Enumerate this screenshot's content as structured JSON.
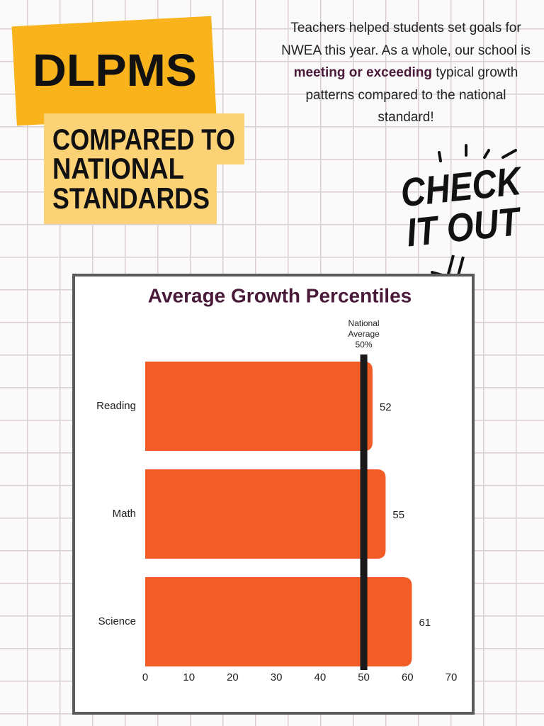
{
  "header": {
    "title": "DLPMS",
    "subtitle_lines": [
      "COMPARED TO",
      "NATIONAL",
      "STANDARDS"
    ]
  },
  "intro": {
    "parts": [
      "Teachers helped students set goals for NWEA this year. As a whole, our school is ",
      "meeting or exceeding",
      " typical growth patterns compared to the national standard!"
    ]
  },
  "callout": {
    "lines": [
      "CHECK",
      "IT OUT"
    ]
  },
  "chart_data": {
    "type": "barh",
    "title": "Average Growth Percentiles",
    "categories": [
      "Reading",
      "Math",
      "Science"
    ],
    "values": [
      52,
      55,
      61
    ],
    "color": "#f25c27",
    "xlim": [
      0,
      70
    ],
    "xticks": [
      0,
      10,
      20,
      30,
      40,
      50,
      60,
      70
    ],
    "reference_line": {
      "value": 50,
      "label_lines": [
        "National",
        "Average",
        "50%"
      ],
      "color": "#1a1a1a"
    }
  }
}
